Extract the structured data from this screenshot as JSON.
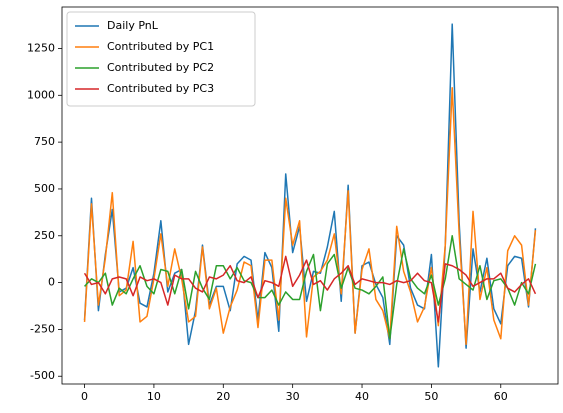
{
  "chart_data": {
    "type": "line",
    "x": [
      0,
      1,
      2,
      3,
      4,
      5,
      6,
      7,
      8,
      9,
      10,
      11,
      12,
      13,
      14,
      15,
      16,
      17,
      18,
      19,
      20,
      21,
      22,
      23,
      24,
      25,
      26,
      27,
      28,
      29,
      30,
      31,
      32,
      33,
      34,
      35,
      36,
      37,
      38,
      39,
      40,
      41,
      42,
      43,
      44,
      45,
      46,
      47,
      48,
      49,
      50,
      51,
      52,
      53,
      54,
      55,
      56,
      57,
      58,
      59,
      60,
      61,
      62,
      63,
      64,
      65
    ],
    "series": [
      {
        "name": "Daily PnL",
        "color": "#1f77b4",
        "values": [
          -200,
          450,
          -150,
          150,
          390,
          -50,
          -30,
          80,
          -110,
          -130,
          50,
          330,
          -50,
          50,
          70,
          -330,
          -150,
          200,
          -120,
          -20,
          -20,
          -150,
          100,
          140,
          120,
          -200,
          160,
          80,
          -260,
          580,
          160,
          300,
          -100,
          60,
          50,
          190,
          380,
          -100,
          520,
          -270,
          90,
          110,
          -10,
          -80,
          -330,
          250,
          200,
          -30,
          -120,
          -140,
          150,
          -450,
          200,
          1380,
          320,
          -350,
          180,
          -50,
          130,
          -140,
          -220,
          90,
          140,
          130,
          -130,
          290
        ]
      },
      {
        "name": "Contributed by PC1",
        "color": "#ff7f0e",
        "values": [
          -210,
          420,
          -120,
          130,
          480,
          -70,
          -40,
          220,
          -210,
          -180,
          20,
          260,
          -20,
          180,
          20,
          -210,
          -180,
          190,
          -140,
          -30,
          -270,
          -130,
          -40,
          110,
          90,
          -240,
          120,
          120,
          -200,
          450,
          200,
          330,
          -290,
          30,
          60,
          120,
          260,
          -60,
          490,
          -270,
          70,
          180,
          -90,
          -150,
          -300,
          300,
          60,
          -50,
          -210,
          -130,
          80,
          -230,
          200,
          1040,
          260,
          -330,
          380,
          -90,
          80,
          -200,
          -300,
          170,
          250,
          200,
          -120,
          280
        ]
      },
      {
        "name": "Contributed by PC2",
        "color": "#2ca02c",
        "values": [
          -20,
          20,
          0,
          50,
          -120,
          -30,
          -60,
          20,
          90,
          -20,
          -60,
          70,
          60,
          -60,
          70,
          -140,
          60,
          -30,
          -90,
          90,
          90,
          20,
          80,
          10,
          0,
          -80,
          -80,
          -40,
          -120,
          -50,
          -90,
          -90,
          60,
          150,
          -150,
          100,
          150,
          -30,
          80,
          -30,
          -40,
          -60,
          -20,
          30,
          -300,
          -10,
          180,
          20,
          -30,
          -60,
          40,
          -120,
          20,
          250,
          20,
          -10,
          -40,
          90,
          -90,
          10,
          20,
          -30,
          -120,
          0,
          -60,
          100
        ]
      },
      {
        "name": "Contributed by PC3",
        "color": "#d62728",
        "values": [
          50,
          -10,
          0,
          -60,
          20,
          30,
          20,
          -70,
          30,
          10,
          20,
          0,
          -120,
          40,
          20,
          20,
          -30,
          -50,
          30,
          20,
          40,
          90,
          10,
          0,
          30,
          -80,
          10,
          0,
          -20,
          140,
          -20,
          40,
          120,
          -10,
          10,
          -40,
          20,
          50,
          90,
          -10,
          20,
          10,
          0,
          0,
          -10,
          10,
          0,
          10,
          50,
          10,
          0,
          -210,
          100,
          90,
          70,
          40,
          -20,
          0,
          20,
          20,
          50,
          -30,
          -50,
          -10,
          20,
          -60
        ]
      }
    ],
    "xlim": [
      -3.25,
      68.25
    ],
    "ylim": [
      -541.5,
      1471.5
    ],
    "xticks": [
      0,
      10,
      20,
      30,
      40,
      50,
      60
    ],
    "yticks": [
      -500,
      -250,
      0,
      250,
      500,
      750,
      1000,
      1250
    ],
    "legend": "upper left"
  }
}
